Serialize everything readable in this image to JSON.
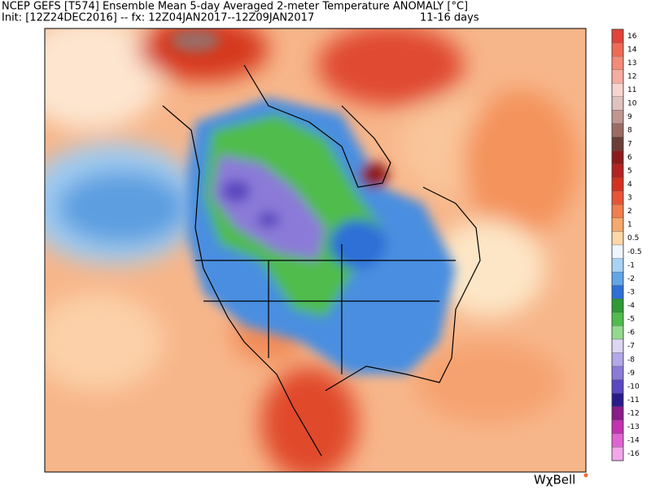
{
  "header": {
    "title": "NCEP GEFS [T574] Ensemble Mean 5-day Averaged 2-meter Temperature ANOMALY [°C]",
    "init": "Init: [12Z24DEC2016] -- fx: 12Z04JAN2017--12Z09JAN2017",
    "range": "11-16 days"
  },
  "legend": [
    {
      "label": 16,
      "color": "#e2443a"
    },
    {
      "label": 14,
      "color": "#ef6a55"
    },
    {
      "label": 13,
      "color": "#f48b79"
    },
    {
      "label": 12,
      "color": "#f7aca0"
    },
    {
      "label": 11,
      "color": "#f7d4cf"
    },
    {
      "label": 10,
      "color": "#dfc2be"
    },
    {
      "label": 9,
      "color": "#bf9690"
    },
    {
      "label": 8,
      "color": "#9b6c65"
    },
    {
      "label": 7,
      "color": "#6b3f38"
    },
    {
      "label": 6,
      "color": "#8e1b1b"
    },
    {
      "label": 5,
      "color": "#b52222"
    },
    {
      "label": 4,
      "color": "#d6301f"
    },
    {
      "label": 3,
      "color": "#e8543a"
    },
    {
      "label": 2,
      "color": "#f27e4e"
    },
    {
      "label": 1,
      "color": "#f7a86c"
    },
    {
      "label": 0.5,
      "color": "#fcd8a8"
    },
    {
      "label": -0.5,
      "color": "#eef6fc"
    },
    {
      "label": -1,
      "color": "#a9d3f3"
    },
    {
      "label": -2,
      "color": "#62a6e8"
    },
    {
      "label": -3,
      "color": "#2f6fd6"
    },
    {
      "label": -4,
      "color": "#2e9a36"
    },
    {
      "label": -5,
      "color": "#4fbc4c"
    },
    {
      "label": -6,
      "color": "#94da8e"
    },
    {
      "label": -7,
      "color": "#dcd6f3"
    },
    {
      "label": -8,
      "color": "#b3a8e8"
    },
    {
      "label": -9,
      "color": "#8b7ad8"
    },
    {
      "label": -10,
      "color": "#5b47c0"
    },
    {
      "label": -11,
      "color": "#2a1b8c"
    },
    {
      "label": -12,
      "color": "#8a1b8a"
    },
    {
      "label": -13,
      "color": "#c232b2"
    },
    {
      "label": -14,
      "color": "#e063d2"
    },
    {
      "label": -16,
      "color": "#f3a6ea"
    }
  ],
  "logo": "WχBell"
}
